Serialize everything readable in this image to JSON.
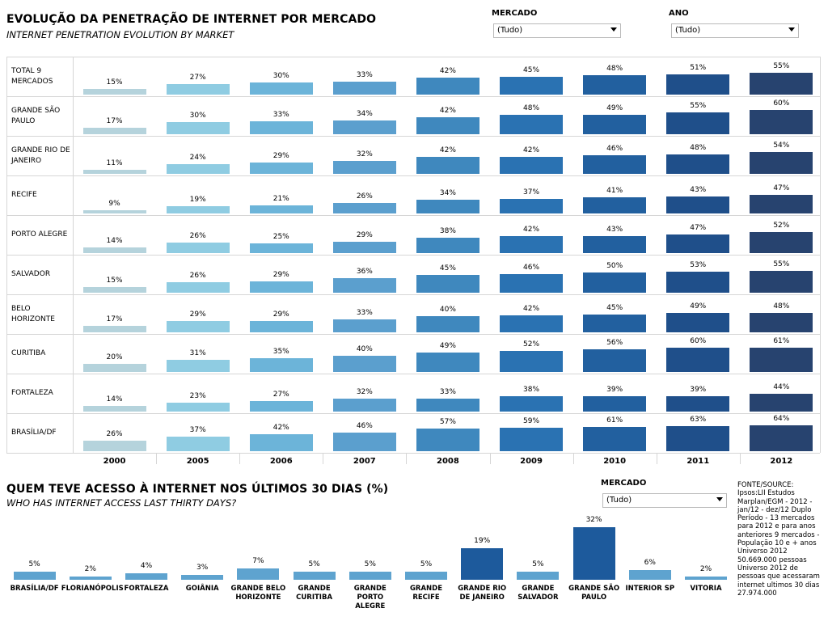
{
  "header": {
    "title": "EVOLUÇÃO DA PENETRAÇÃO DE INTERNET POR MERCADO",
    "subtitle": "INTERNET PENETRATION EVOLUTION BY MARKET"
  },
  "filters": {
    "mercado_label": "MERCADO",
    "mercado_value": "(Tudo)",
    "ano_label": "ANO",
    "ano_value": "(Tudo)"
  },
  "bottom": {
    "title": "QUEM TEVE ACESSO À INTERNET NOS ÚLTIMOS 30 DIAS (%)",
    "subtitle": "WHO HAS INTERNET ACCESS LAST THIRTY DAYS?",
    "mercado_label": "MERCADO",
    "mercado_value": "(Tudo)"
  },
  "source_text": "FONTE/SOURCE: Ipsos:LII Estudos Marplan/EGM - 2012 - jan/12 - dez/12 Duplo Período - 13 mercados para 2012 e para anos anteriores 9 mercados  - População 10 e + anos Universo 2012 50.669.000 pessoas Universo 2012 de pessoas que acessaram internet ultimos 30 dias 27.974.000",
  "colors": {
    "years": [
      "#b5d3dc",
      "#8fcce2",
      "#6cb4d9",
      "#5b9fce",
      "#3f88be",
      "#2a72b2",
      "#22609f",
      "#1f4f8a",
      "#27436f"
    ],
    "bottom_bars": "#5ea3cf",
    "bottom_bars_highlight": "#1d5a9c"
  },
  "chart_data": [
    {
      "type": "bar",
      "title": "EVOLUÇÃO DA PENETRAÇÃO DE INTERNET POR MERCADO",
      "years": [
        "2000",
        "2005",
        "2006",
        "2007",
        "2008",
        "2009",
        "2010",
        "2011",
        "2012"
      ],
      "markets": [
        {
          "name": "TOTAL 9 MERCADOS",
          "lines": [
            "TOTAL 9",
            "MERCADOS"
          ],
          "values": [
            15,
            27,
            30,
            33,
            42,
            45,
            48,
            51,
            55
          ]
        },
        {
          "name": "GRANDE SÃO PAULO",
          "lines": [
            "GRANDE SÃO",
            "PAULO"
          ],
          "values": [
            17,
            30,
            33,
            34,
            42,
            48,
            49,
            55,
            60
          ]
        },
        {
          "name": "GRANDE RIO DE JANEIRO",
          "lines": [
            "GRANDE RIO DE",
            "JANEIRO"
          ],
          "values": [
            11,
            24,
            29,
            32,
            42,
            42,
            46,
            48,
            54
          ]
        },
        {
          "name": "RECIFE",
          "lines": [
            "RECIFE"
          ],
          "values": [
            9,
            19,
            21,
            26,
            34,
            37,
            41,
            43,
            47
          ]
        },
        {
          "name": "PORTO ALEGRE",
          "lines": [
            "PORTO ALEGRE"
          ],
          "values": [
            14,
            26,
            25,
            29,
            38,
            42,
            43,
            47,
            52
          ]
        },
        {
          "name": "SALVADOR",
          "lines": [
            "SALVADOR"
          ],
          "values": [
            15,
            26,
            29,
            36,
            45,
            46,
            50,
            53,
            55
          ]
        },
        {
          "name": "BELO HORIZONTE",
          "lines": [
            "BELO",
            "HORIZONTE"
          ],
          "values": [
            17,
            29,
            29,
            33,
            40,
            42,
            45,
            49,
            48
          ]
        },
        {
          "name": "CURITIBA",
          "lines": [
            "CURITIBA"
          ],
          "values": [
            20,
            31,
            35,
            40,
            49,
            52,
            56,
            60,
            61
          ]
        },
        {
          "name": "FORTALEZA",
          "lines": [
            "FORTALEZA"
          ],
          "values": [
            14,
            23,
            27,
            32,
            33,
            38,
            39,
            39,
            44
          ]
        },
        {
          "name": "BRASÍLIA/DF",
          "lines": [
            "BRASÍLIA/DF"
          ],
          "values": [
            26,
            37,
            42,
            46,
            57,
            59,
            61,
            63,
            64
          ]
        }
      ]
    },
    {
      "type": "bar",
      "title": "QUEM TEVE ACESSO À INTERNET NOS ÚLTIMOS 30 DIAS (%)",
      "categories": [
        {
          "name": "BRASÍLIA/DF",
          "lines": [
            "BRASÍLIA/DF"
          ],
          "value": 5
        },
        {
          "name": "FLORIANÓPOLIS",
          "lines": [
            "FLORIANÓPOLIS"
          ],
          "value": 2
        },
        {
          "name": "FORTALEZA",
          "lines": [
            "FORTALEZA"
          ],
          "value": 4
        },
        {
          "name": "GOIÂNIA",
          "lines": [
            "GOIÂNIA"
          ],
          "value": 3
        },
        {
          "name": "GRANDE BELO HORIZONTE",
          "lines": [
            "GRANDE BELO",
            "HORIZONTE"
          ],
          "value": 7
        },
        {
          "name": "GRANDE CURITIBA",
          "lines": [
            "GRANDE",
            "CURITIBA"
          ],
          "value": 5
        },
        {
          "name": "GRANDE PORTO ALEGRE",
          "lines": [
            "GRANDE",
            "PORTO",
            "ALEGRE"
          ],
          "value": 5
        },
        {
          "name": "GRANDE RECIFE",
          "lines": [
            "GRANDE",
            "RECIFE"
          ],
          "value": 5
        },
        {
          "name": "GRANDE RIO DE JANEIRO",
          "lines": [
            "GRANDE RIO",
            "DE JANEIRO"
          ],
          "value": 19
        },
        {
          "name": "GRANDE SALVADOR",
          "lines": [
            "GRANDE",
            "SALVADOR"
          ],
          "value": 5
        },
        {
          "name": "GRANDE SÃO PAULO",
          "lines": [
            "GRANDE SÃO",
            "PAULO"
          ],
          "value": 32
        },
        {
          "name": "INTERIOR SP",
          "lines": [
            "INTERIOR SP"
          ],
          "value": 6
        },
        {
          "name": "VITORIA",
          "lines": [
            "VITORIA"
          ],
          "value": 2
        }
      ]
    }
  ]
}
